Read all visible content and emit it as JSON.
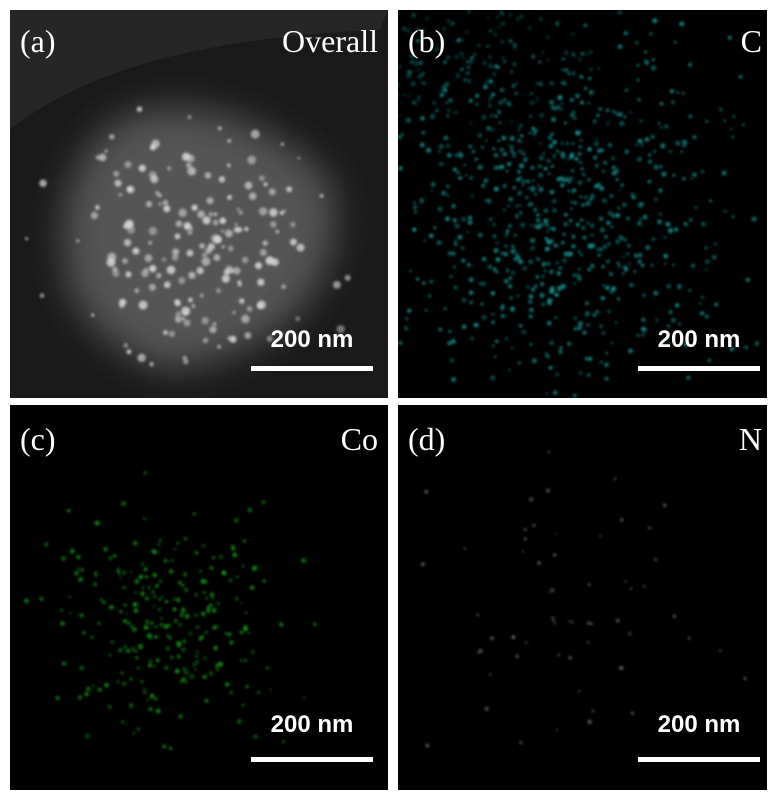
{
  "panels": [
    {
      "label": "(a)",
      "element": "Overall",
      "scale_bar": "200 nm"
    },
    {
      "label": "(b)",
      "element": "C",
      "scale_bar": "200 nm"
    },
    {
      "label": "(c)",
      "element": "Co",
      "scale_bar": "200 nm"
    },
    {
      "label": "(d)",
      "element": "N",
      "scale_bar": "200 nm"
    }
  ]
}
